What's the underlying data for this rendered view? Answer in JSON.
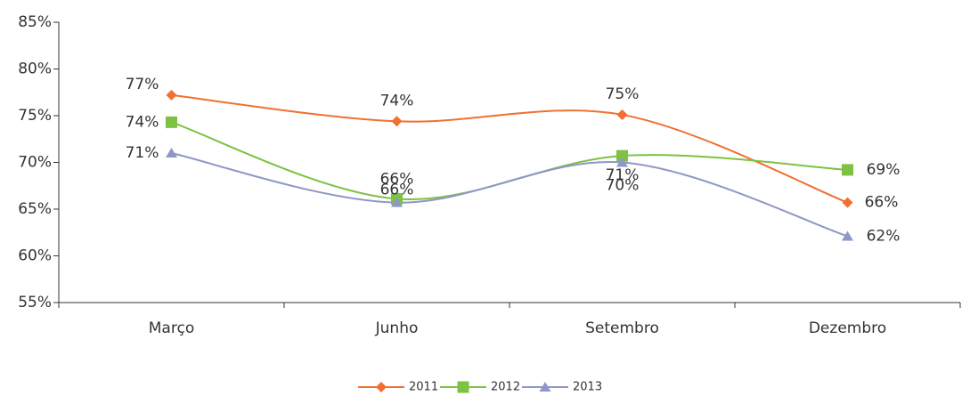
{
  "chart_data": {
    "type": "line",
    "categories": [
      "Março",
      "Junho",
      "Setembro",
      "Dezembro"
    ],
    "series": [
      {
        "name": "2011",
        "color": "#f07030",
        "marker": "diamond",
        "values": [
          77.2,
          74.4,
          75.1,
          65.7
        ],
        "value_labels": [
          "77%",
          "74%",
          "75%",
          "66%"
        ]
      },
      {
        "name": "2012",
        "color": "#7dc242",
        "marker": "square",
        "values": [
          74.3,
          66.1,
          70.7,
          69.2
        ],
        "value_labels": [
          "74%",
          "66%",
          "71%",
          "69%"
        ]
      },
      {
        "name": "2013",
        "color": "#8f96c8",
        "marker": "triangle",
        "values": [
          71.0,
          65.7,
          70.0,
          62.1
        ],
        "value_labels": [
          "71%",
          "66%",
          "70%",
          "62%"
        ]
      }
    ],
    "ylim": [
      55,
      85
    ],
    "yticks": [
      {
        "value": 55,
        "label": "55%"
      },
      {
        "value": 60,
        "label": "60%"
      },
      {
        "value": 65,
        "label": "65%"
      },
      {
        "value": 70,
        "label": "70%"
      },
      {
        "value": 75,
        "label": "75%"
      },
      {
        "value": 80,
        "label": "80%"
      },
      {
        "value": 85,
        "label": "85%"
      }
    ],
    "grid": false,
    "smooth": true,
    "legend": "bottom"
  }
}
